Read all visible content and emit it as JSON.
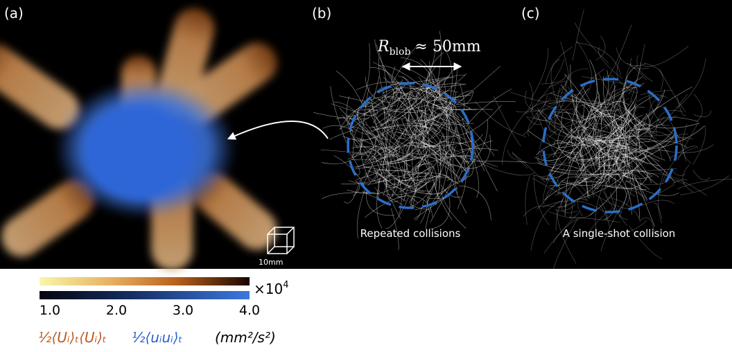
{
  "panels": {
    "a": {
      "label": "(a)",
      "scale_bar": "10mm"
    },
    "b": {
      "label": "(b)",
      "caption": "Repeated collisions"
    },
    "c": {
      "label": "(c)",
      "caption": "A single-shot collision"
    }
  },
  "annotation": {
    "symbol": "R",
    "subscript": "blob",
    "relation": "≈ 50mm"
  },
  "colorbar": {
    "multiplier": "×10",
    "exponent": "4",
    "ticks": [
      "1.0",
      "2.0",
      "3.0",
      "4.0"
    ],
    "legend": [
      {
        "text": "½⟨Uᵢ⟩ₜ⟨Uᵢ⟩ₜ",
        "color": "#b85a1e"
      },
      {
        "text": "½⟨uᵢuᵢ⟩ₜ",
        "color": "#2a5fd0"
      },
      {
        "text": "(mm²/s²)",
        "color": "#000000"
      }
    ]
  }
}
